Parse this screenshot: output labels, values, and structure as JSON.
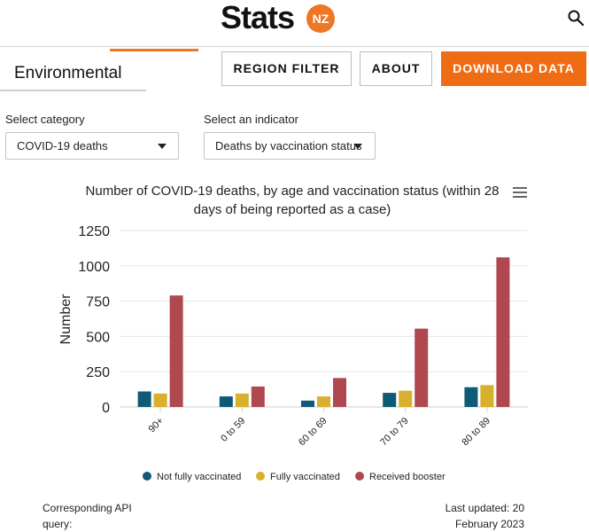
{
  "header": {
    "logo_text": "Stats",
    "logo_badge": "NZ",
    "section_title": "Environmental",
    "nav": {
      "region_filter": "REGION FILTER",
      "about": "ABOUT",
      "download": "DOWNLOAD DATA"
    }
  },
  "filters": {
    "category_label": "Select category",
    "category_value": "COVID-19 deaths",
    "indicator_label": "Select an indicator",
    "indicator_value": "Deaths by vaccination status"
  },
  "chart_data": {
    "type": "bar",
    "title_line1": "Number of COVID-19 deaths, by age and vaccination status (within 28",
    "title_line2": "days of being reported as a case)",
    "ylabel": "Number",
    "xlabel": "",
    "ylim": [
      0,
      1250
    ],
    "yticks": [
      0,
      250,
      500,
      750,
      1000,
      1250
    ],
    "grid": true,
    "legend_position": "bottom",
    "categories": [
      "90+",
      "0 to 59",
      "60 to 69",
      "70 to 79",
      "80 to 89"
    ],
    "series": [
      {
        "name": "Not fully vaccinated",
        "color": "#0f5a75",
        "values": [
          110,
          75,
          45,
          100,
          140
        ]
      },
      {
        "name": "Fully vaccinated",
        "color": "#d8b02c",
        "values": [
          95,
          95,
          75,
          115,
          155
        ]
      },
      {
        "name": "Received booster",
        "color": "#b0484f",
        "values": [
          790,
          145,
          205,
          555,
          1060
        ]
      }
    ]
  },
  "footer": {
    "api_label_line1": "Corresponding API",
    "api_label_line2": "query:",
    "updated_line1": "Last updated: 20",
    "updated_line2": "February 2023"
  }
}
